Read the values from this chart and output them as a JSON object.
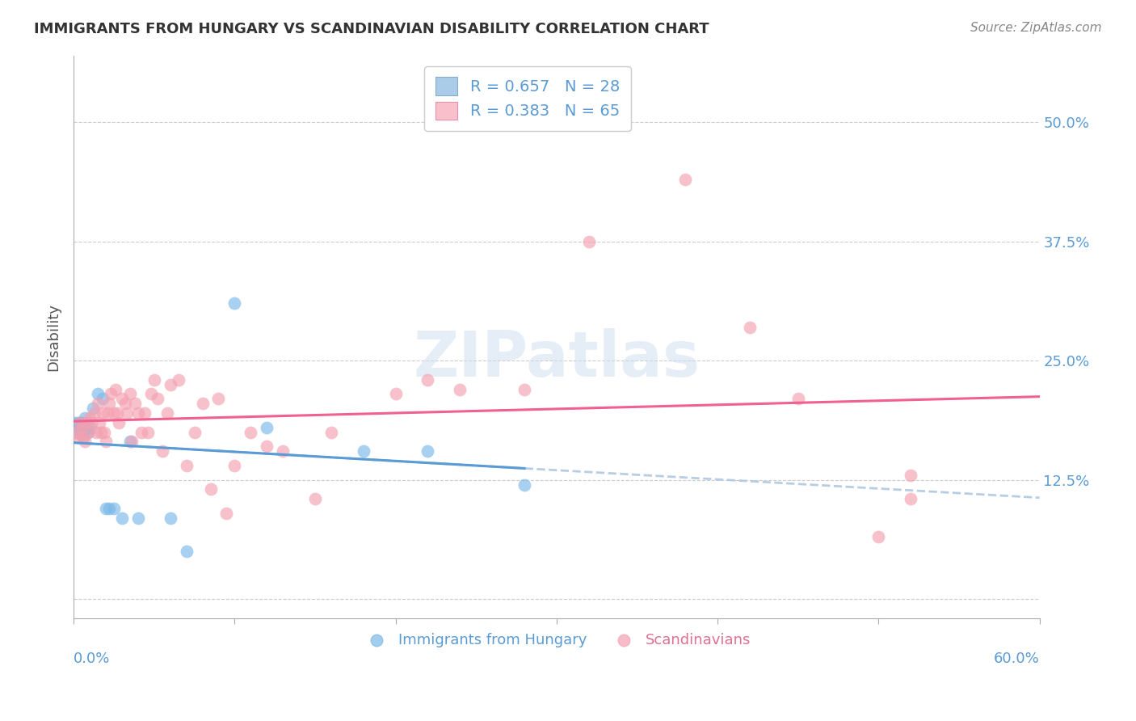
{
  "title": "IMMIGRANTS FROM HUNGARY VS SCANDINAVIAN DISABILITY CORRELATION CHART",
  "source": "Source: ZipAtlas.com",
  "ylabel": "Disability",
  "xlim": [
    0.0,
    0.6
  ],
  "ylim": [
    -0.02,
    0.57
  ],
  "yticks": [
    0.0,
    0.125,
    0.25,
    0.375,
    0.5
  ],
  "ytick_labels": [
    "",
    "12.5%",
    "25.0%",
    "37.5%",
    "50.0%"
  ],
  "legend_blue_label": "R = 0.657   N = 28",
  "legend_pink_label": "R = 0.383   N = 65",
  "legend_blue_color": "#5b9bd5",
  "legend_pink_color": "#f48fb1",
  "watermark": "ZIPatlas",
  "blue_color": "#7ab8e8",
  "pink_color": "#f4a0b0",
  "trend_blue": "#5b9bd5",
  "trend_pink": "#f06090",
  "trend_dashed_color": "#b0c8e0",
  "hungary_points": [
    [
      0.001,
      0.185
    ],
    [
      0.002,
      0.175
    ],
    [
      0.003,
      0.185
    ],
    [
      0.004,
      0.18
    ],
    [
      0.005,
      0.175
    ],
    [
      0.005,
      0.185
    ],
    [
      0.006,
      0.17
    ],
    [
      0.007,
      0.18
    ],
    [
      0.007,
      0.19
    ],
    [
      0.008,
      0.185
    ],
    [
      0.009,
      0.175
    ],
    [
      0.01,
      0.18
    ],
    [
      0.012,
      0.2
    ],
    [
      0.015,
      0.215
    ],
    [
      0.018,
      0.21
    ],
    [
      0.02,
      0.095
    ],
    [
      0.022,
      0.095
    ],
    [
      0.025,
      0.095
    ],
    [
      0.03,
      0.085
    ],
    [
      0.035,
      0.165
    ],
    [
      0.04,
      0.085
    ],
    [
      0.06,
      0.085
    ],
    [
      0.07,
      0.05
    ],
    [
      0.1,
      0.31
    ],
    [
      0.12,
      0.18
    ],
    [
      0.18,
      0.155
    ],
    [
      0.22,
      0.155
    ],
    [
      0.28,
      0.12
    ]
  ],
  "scand_points": [
    [
      0.002,
      0.175
    ],
    [
      0.003,
      0.17
    ],
    [
      0.004,
      0.185
    ],
    [
      0.005,
      0.18
    ],
    [
      0.006,
      0.17
    ],
    [
      0.007,
      0.165
    ],
    [
      0.008,
      0.185
    ],
    [
      0.009,
      0.175
    ],
    [
      0.01,
      0.19
    ],
    [
      0.011,
      0.185
    ],
    [
      0.013,
      0.195
    ],
    [
      0.014,
      0.175
    ],
    [
      0.015,
      0.205
    ],
    [
      0.016,
      0.185
    ],
    [
      0.017,
      0.175
    ],
    [
      0.018,
      0.195
    ],
    [
      0.019,
      0.175
    ],
    [
      0.02,
      0.165
    ],
    [
      0.021,
      0.195
    ],
    [
      0.022,
      0.205
    ],
    [
      0.023,
      0.215
    ],
    [
      0.025,
      0.195
    ],
    [
      0.026,
      0.22
    ],
    [
      0.027,
      0.195
    ],
    [
      0.028,
      0.185
    ],
    [
      0.03,
      0.21
    ],
    [
      0.032,
      0.205
    ],
    [
      0.033,
      0.195
    ],
    [
      0.035,
      0.215
    ],
    [
      0.036,
      0.165
    ],
    [
      0.038,
      0.205
    ],
    [
      0.04,
      0.195
    ],
    [
      0.042,
      0.175
    ],
    [
      0.044,
      0.195
    ],
    [
      0.046,
      0.175
    ],
    [
      0.048,
      0.215
    ],
    [
      0.05,
      0.23
    ],
    [
      0.052,
      0.21
    ],
    [
      0.055,
      0.155
    ],
    [
      0.058,
      0.195
    ],
    [
      0.06,
      0.225
    ],
    [
      0.065,
      0.23
    ],
    [
      0.07,
      0.14
    ],
    [
      0.075,
      0.175
    ],
    [
      0.08,
      0.205
    ],
    [
      0.085,
      0.115
    ],
    [
      0.09,
      0.21
    ],
    [
      0.095,
      0.09
    ],
    [
      0.1,
      0.14
    ],
    [
      0.11,
      0.175
    ],
    [
      0.12,
      0.16
    ],
    [
      0.13,
      0.155
    ],
    [
      0.15,
      0.105
    ],
    [
      0.16,
      0.175
    ],
    [
      0.2,
      0.215
    ],
    [
      0.22,
      0.23
    ],
    [
      0.24,
      0.22
    ],
    [
      0.28,
      0.22
    ],
    [
      0.32,
      0.375
    ],
    [
      0.38,
      0.44
    ],
    [
      0.42,
      0.285
    ],
    [
      0.45,
      0.21
    ],
    [
      0.5,
      0.065
    ],
    [
      0.52,
      0.13
    ],
    [
      0.52,
      0.105
    ]
  ]
}
